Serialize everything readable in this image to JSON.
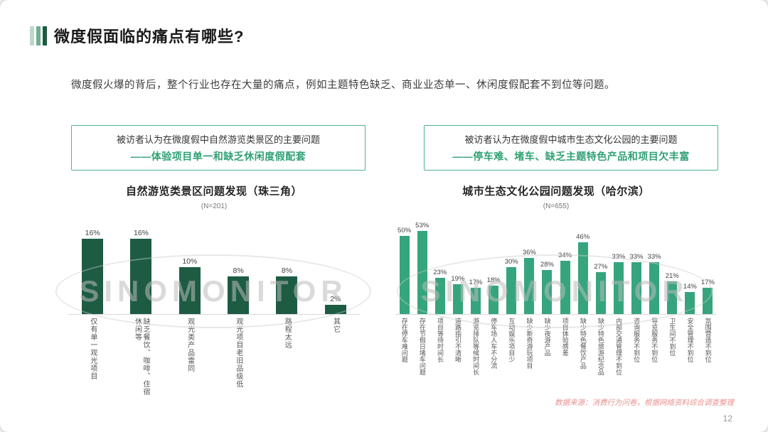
{
  "header": {
    "title": "微度假面临的痛点有哪些?"
  },
  "intro": "微度假火爆的背后，整个行业也存在大量的痛点，例如主题特色缺乏、商业业态单一、休闲度假配套不到位等问题。",
  "callouts": [
    {
      "line1": "被访者认为在微度假中自然游览类景区的主要问题",
      "line2": "——体验项目单一和缺乏休闲度假配套"
    },
    {
      "line1": "被访者认为在微度假中城市生态文化公园的主要问题",
      "line2": "——停车难、堵车、缺乏主题特色产品和项目欠丰富"
    }
  ],
  "chart_data": [
    {
      "type": "bar",
      "title": "自然游览类景区问题发现（珠三角）",
      "subtitle": "(N=201)",
      "categories": [
        "仅有单一观光项目",
        "缺乏餐饮、咖啡、住宿休闲等",
        "观光类产品雷同",
        "观光项目老旧品级低",
        "路程太远",
        "其它"
      ],
      "values": [
        16,
        16,
        10,
        8,
        8,
        2
      ],
      "unit": "%",
      "ylim": [
        0,
        20
      ],
      "bar_color": "#1d5c43",
      "legend": "none",
      "grid": "off"
    },
    {
      "type": "bar",
      "title": "城市生态文化公园问题发现（哈尔滨）",
      "subtitle": "(N=655)",
      "categories": [
        "存在停车难问题",
        "存在节假日堵车问题",
        "项目等待时间长",
        "道路指引不清晰",
        "游览排队等候时间长",
        "停车场人车不分流",
        "互动娱乐项目少",
        "缺少新奇游玩项目",
        "缺少夜游产品",
        "项目体验感差",
        "缺少特色餐饮产品",
        "缺少特色旅游纪念品",
        "内部交通管理不到位",
        "咨询服务不到位",
        "导览服务不到位",
        "卫生间不到位",
        "安全管理不到位",
        "氛围营造不到位"
      ],
      "values": [
        50,
        53,
        23,
        19,
        17,
        18,
        30,
        36,
        28,
        34,
        46,
        27,
        33,
        33,
        33,
        21,
        14,
        17
      ],
      "unit": "%",
      "ylim": [
        0,
        60
      ],
      "bar_color": "#36a57d",
      "legend": "none",
      "grid": "off"
    }
  ],
  "watermark": {
    "text": "SINOMONITOR"
  },
  "footer": {
    "source": "数据来源：消费行为问卷，根据网络资料综合调查整理",
    "page": "12"
  },
  "colors": {
    "accent_green": "#2ea172",
    "dark_bar": "#1d5c43",
    "light_bar": "#36a57d",
    "title_bar_colors": [
      "#bcd8c8",
      "#6fae90",
      "#1d5c43"
    ],
    "source_red": "#e9908f"
  }
}
